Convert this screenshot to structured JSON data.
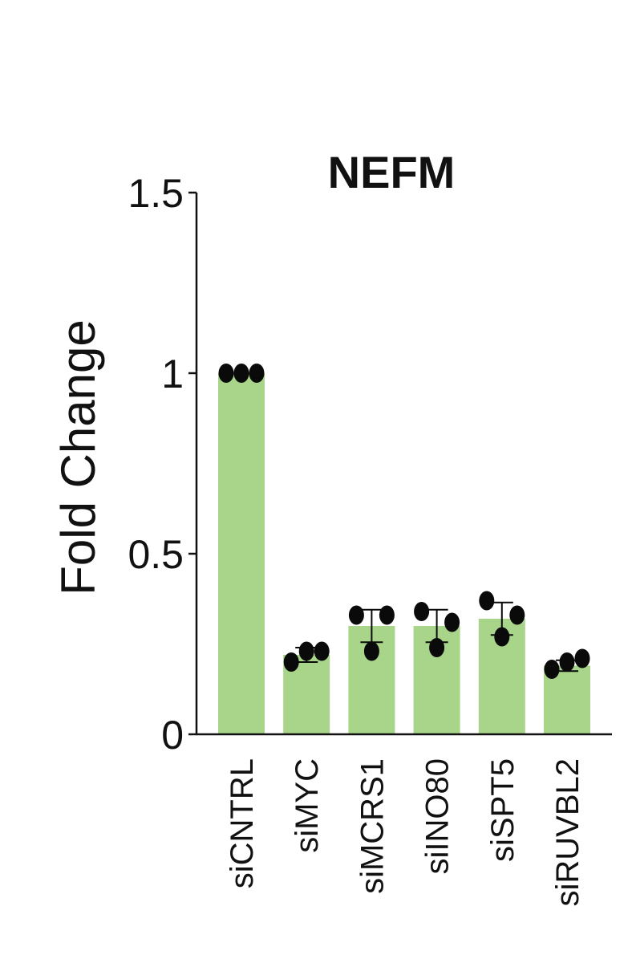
{
  "chart_data": {
    "type": "bar",
    "title": "NEFM",
    "xlabel": "",
    "ylabel": "Fold Change",
    "ylim": [
      0,
      1.5
    ],
    "yticks": [
      0,
      0.5,
      1,
      1.5
    ],
    "ytick_labels": [
      "0",
      "0.5",
      "1",
      "1.5"
    ],
    "categories": [
      "siCNTRL",
      "siMYC",
      "siMCRS1",
      "siINO80",
      "siSPT5",
      "siRUVBL2"
    ],
    "values": [
      1.0,
      0.22,
      0.3,
      0.3,
      0.32,
      0.19
    ],
    "error_sd": [
      0.0,
      0.02,
      0.045,
      0.045,
      0.045,
      0.015
    ],
    "points": [
      [
        1.0,
        1.0,
        1.0
      ],
      [
        0.2,
        0.23,
        0.23
      ],
      [
        0.33,
        0.23,
        0.33
      ],
      [
        0.34,
        0.24,
        0.31
      ],
      [
        0.37,
        0.27,
        0.33
      ],
      [
        0.18,
        0.2,
        0.21
      ]
    ],
    "colors": {
      "bar": "#a8d58a",
      "point": "#0a0a0a",
      "axis": "#111111"
    },
    "grid": false,
    "legend": "none"
  }
}
